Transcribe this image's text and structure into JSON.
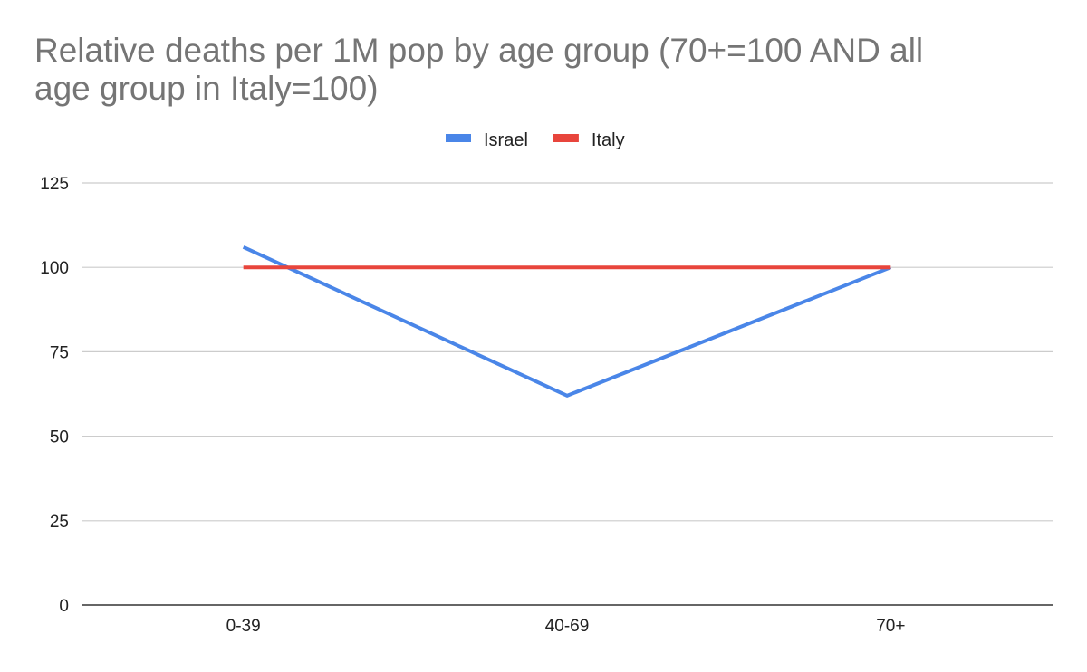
{
  "chart_data": {
    "type": "line",
    "title_lines": [
      "Relative deaths per 1M pop by age group (70+=100 AND all",
      "age group in Italy=100)"
    ],
    "categories": [
      "0-39",
      "40-69",
      "70+"
    ],
    "series": [
      {
        "name": "Israel",
        "color": "#4a86e8",
        "values": [
          106,
          62,
          100
        ]
      },
      {
        "name": "Italy",
        "color": "#e8453c",
        "values": [
          100,
          100,
          100
        ]
      }
    ],
    "yticks": [
      0,
      25,
      50,
      75,
      100,
      125
    ],
    "ylim": [
      0,
      125
    ],
    "xlabel": "",
    "ylabel": "",
    "grid": true,
    "legend_position": "top-center"
  }
}
